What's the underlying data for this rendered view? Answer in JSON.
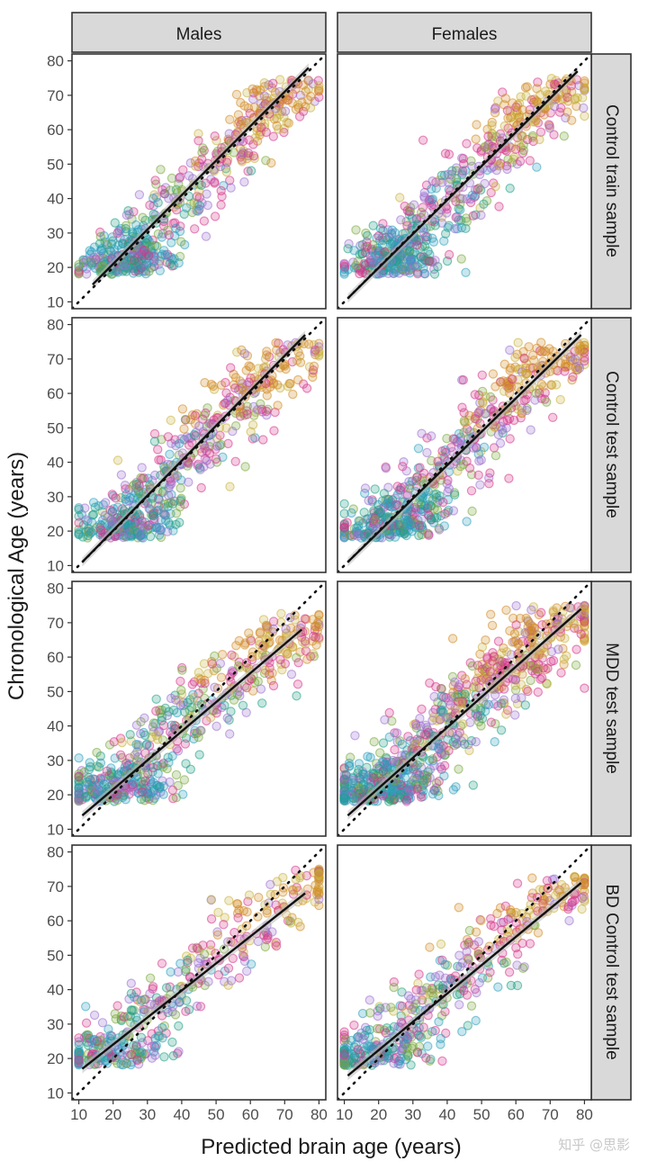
{
  "chart_data": {
    "type": "scatter",
    "xlabel": "Predicted brain age (years)",
    "ylabel": "Chronological Age (years)",
    "xlim": [
      8,
      82
    ],
    "ylim": [
      8,
      82
    ],
    "x_ticks": [
      10,
      20,
      30,
      40,
      50,
      60,
      70,
      80
    ],
    "y_ticks": [
      10,
      20,
      30,
      40,
      50,
      60,
      70,
      80
    ],
    "columns": [
      "Males",
      "Females"
    ],
    "rows": [
      "Control train sample",
      "Control test sample",
      "MDD test sample",
      "BD Control test sample"
    ],
    "identity_line": true,
    "grid": false,
    "palette": [
      "#d28a24",
      "#2a9fbd",
      "#d6378a",
      "#9a6fd0",
      "#76a83a",
      "#1d9e85",
      "#c9b23c"
    ],
    "panels": [
      {
        "row": 0,
        "col": 0,
        "fit": [
          [
            14,
            15
          ],
          [
            77,
            78
          ]
        ],
        "n_points": 560,
        "cloud": {
          "age_min": 18,
          "age_max": 75,
          "slope": 1.0,
          "spread": 6.5
        }
      },
      {
        "row": 0,
        "col": 1,
        "fit": [
          [
            11,
            11
          ],
          [
            78,
            77
          ]
        ],
        "n_points": 600,
        "cloud": {
          "age_min": 18,
          "age_max": 75,
          "slope": 1.0,
          "spread": 7
        }
      },
      {
        "row": 1,
        "col": 0,
        "fit": [
          [
            11,
            11
          ],
          [
            76,
            77
          ]
        ],
        "n_points": 560,
        "cloud": {
          "age_min": 18,
          "age_max": 75,
          "slope": 1.0,
          "spread": 7
        }
      },
      {
        "row": 1,
        "col": 1,
        "fit": [
          [
            11,
            11
          ],
          [
            79,
            77
          ]
        ],
        "n_points": 600,
        "cloud": {
          "age_min": 18,
          "age_max": 75,
          "slope": 1.0,
          "spread": 7.5
        }
      },
      {
        "row": 2,
        "col": 0,
        "fit": [
          [
            11,
            14
          ],
          [
            75,
            68
          ]
        ],
        "n_points": 560,
        "cloud": {
          "age_min": 18,
          "age_max": 73,
          "slope": 0.85,
          "spread": 8
        }
      },
      {
        "row": 2,
        "col": 1,
        "fit": [
          [
            11,
            14
          ],
          [
            79,
            74
          ]
        ],
        "n_points": 800,
        "cloud": {
          "age_min": 18,
          "age_max": 75,
          "slope": 0.88,
          "spread": 8
        }
      },
      {
        "row": 3,
        "col": 0,
        "fit": [
          [
            11,
            17
          ],
          [
            76,
            68
          ]
        ],
        "n_points": 420,
        "cloud": {
          "age_min": 18,
          "age_max": 75,
          "slope": 0.78,
          "spread": 8
        }
      },
      {
        "row": 3,
        "col": 1,
        "fit": [
          [
            11,
            15
          ],
          [
            79,
            71
          ]
        ],
        "n_points": 460,
        "cloud": {
          "age_min": 18,
          "age_max": 73,
          "slope": 0.82,
          "spread": 8
        }
      }
    ]
  },
  "watermark": "知乎 @思影"
}
